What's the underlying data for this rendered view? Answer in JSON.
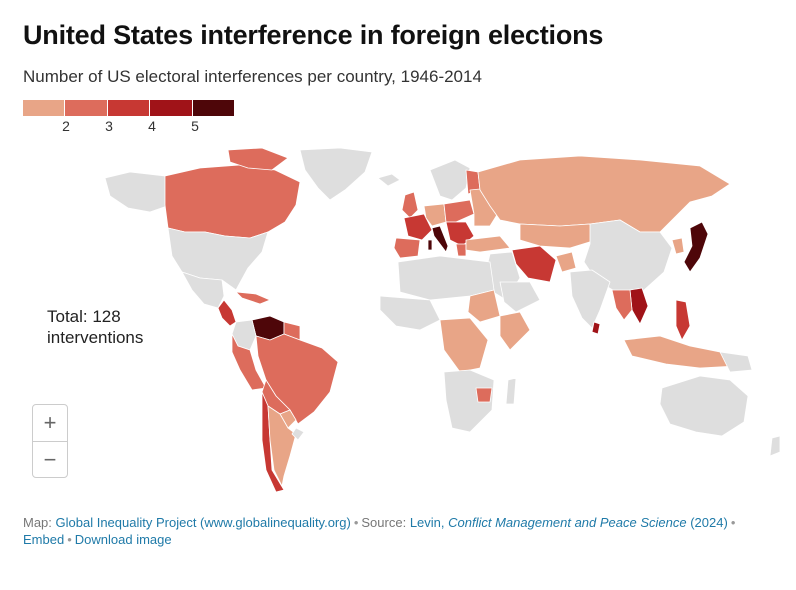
{
  "title": "United States interference in foreign elections",
  "subtitle": "Number of US electoral interferences per country, 1946-2014",
  "legend": {
    "colors": [
      "#e8a587",
      "#dd6c5c",
      "#c73833",
      "#a01318",
      "#4e0609"
    ],
    "ticks": [
      "2",
      "3",
      "4",
      "5"
    ]
  },
  "total": {
    "line1": "Total: 128",
    "line2": "interventions"
  },
  "zoom": {
    "in_label": "+",
    "out_label": "−"
  },
  "colors": {
    "no_data": "#dedede",
    "border": "#ffffff"
  },
  "footer": {
    "map_prefix": "Map: ",
    "map_link": "Global Inequality Project (www.globalinequality.org)",
    "source_prefix": "Source: ",
    "source_author": "Levin, ",
    "source_journal": "Conflict Management and Peace Science",
    "source_year": " (2024)",
    "embed": "Embed",
    "download": "Download image"
  }
}
